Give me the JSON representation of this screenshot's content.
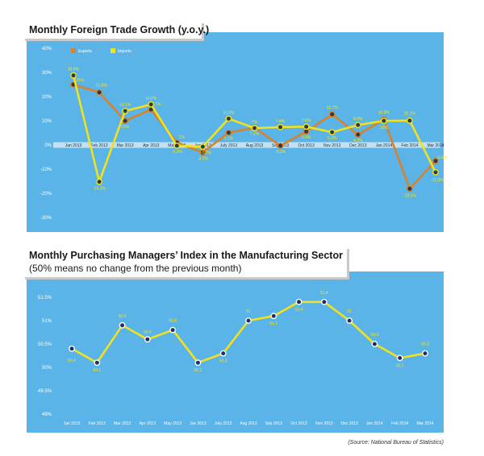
{
  "chart_data": [
    {
      "type": "line",
      "title": "Monthly Foreign Trade Growth (y.o.y.)",
      "categories": [
        "Jan 2013",
        "Feb 2013",
        "Mar 2013",
        "Apr 2013",
        "May 2013",
        "Jun 2013",
        "July 2013",
        "Aug 2013",
        "Sep 2013",
        "Oct 2013",
        "Nov 2013",
        "Dec 2013",
        "Jan 2014",
        "Feb 2014",
        "Mar 2014"
      ],
      "ylim": [
        -30,
        40
      ],
      "yticks": [
        "40%",
        "30%",
        "20%",
        "10%",
        "0%",
        "-10%",
        "-20%",
        "-30%"
      ],
      "legend": "top-left",
      "series": [
        {
          "name": "Exports",
          "color": "#d9822b",
          "values": [
            25,
            21.8,
            10,
            14.7,
            1,
            -3.1,
            5.1,
            7.2,
            -0.3,
            5.6,
            12.7,
            4.3,
            10.6,
            -18.1,
            -6.6
          ],
          "labels": [
            "25%",
            "21.8%",
            "10%",
            "14.7%",
            "1%",
            "-3.1%",
            "5.1%",
            "7.2%",
            "-0.3%",
            "5.6%",
            "12.7%",
            "4.3%",
            "10.6%",
            "-18.1%",
            "-6.6%"
          ]
        },
        {
          "name": "Imports",
          "color": "#f2e21c",
          "values": [
            28.8,
            -15.2,
            14.1,
            16.8,
            -0.3,
            -0.7,
            10.9,
            7,
            7.4,
            7.6,
            5.3,
            8.3,
            10,
            10.1,
            -11.3
          ],
          "labels": [
            "28.8%",
            "-15.2%",
            "14.1%",
            "16.8%",
            "-0.3%",
            "-0.7%",
            "10.9%",
            "7%",
            "7.4%",
            "7.6%",
            "5.3%",
            "8.3%",
            "10%",
            "10.1%",
            "-11.3%"
          ]
        }
      ]
    },
    {
      "type": "line",
      "title": "Monthly Purchasing Managers’ Index in the Manufacturing Sector",
      "subtitle": "(50% means no change from the previous month)",
      "categories": [
        "Jan 2013",
        "Feb 2013",
        "Mar 2013",
        "Apr 2013",
        "May 2013",
        "Jun 2013",
        "July 2013",
        "Aug 2013",
        "Sep 2013",
        "Oct 2013",
        "Nov 2013",
        "Dec 2013",
        "Jan 2014",
        "Feb 2014",
        "Mar 2014"
      ],
      "ylim": [
        49,
        51.6
      ],
      "yticks": [
        "51.5%",
        "51%",
        "50.5%",
        "50%",
        "49.5%",
        "49%"
      ],
      "series": [
        {
          "color": "#f2e21c",
          "values": [
            50.4,
            50.1,
            50.9,
            50.6,
            50.8,
            50.1,
            50.3,
            51,
            51.1,
            51.4,
            51.4,
            51,
            50.5,
            50.2,
            50.3
          ],
          "labels": [
            "50.4",
            "50.1",
            "50.9",
            "50.6",
            "50.8",
            "50.1",
            "50.3",
            "51",
            "51.1",
            "51.4",
            "51.4",
            "51",
            "50.5",
            "50.2",
            "50.3"
          ]
        }
      ]
    }
  ],
  "source": "(Source: National Bureau of Statistics)"
}
